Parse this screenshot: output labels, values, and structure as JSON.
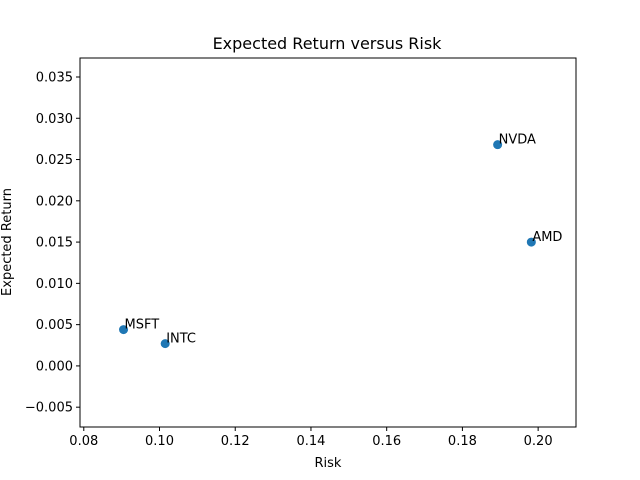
{
  "chart_data": {
    "type": "scatter",
    "title": "Expected Return versus Risk",
    "xlabel": "Risk",
    "ylabel": "Expected Return",
    "xlim": [
      0.079,
      0.21
    ],
    "ylim": [
      -0.0074,
      0.0373
    ],
    "grid": false,
    "legend": "none",
    "marker_color": "#1f77b4",
    "x_ticks": [
      0.08,
      0.1,
      0.12,
      0.14,
      0.16,
      0.18,
      0.2
    ],
    "x_tick_labels": [
      "0.08",
      "0.10",
      "0.12",
      "0.14",
      "0.16",
      "0.18",
      "0.20"
    ],
    "y_ticks": [
      -0.005,
      0.0,
      0.005,
      0.01,
      0.015,
      0.02,
      0.025,
      0.03,
      0.035
    ],
    "y_tick_labels": [
      "−0.005",
      "0.000",
      "0.005",
      "0.010",
      "0.015",
      "0.020",
      "0.025",
      "0.030",
      "0.035"
    ],
    "points": [
      {
        "label": "MSFT",
        "x": 0.0905,
        "y": 0.0044
      },
      {
        "label": "INTC",
        "x": 0.1015,
        "y": 0.0027
      },
      {
        "label": "NVDA",
        "x": 0.1893,
        "y": 0.0268
      },
      {
        "label": "AMD",
        "x": 0.1982,
        "y": 0.015
      }
    ]
  }
}
